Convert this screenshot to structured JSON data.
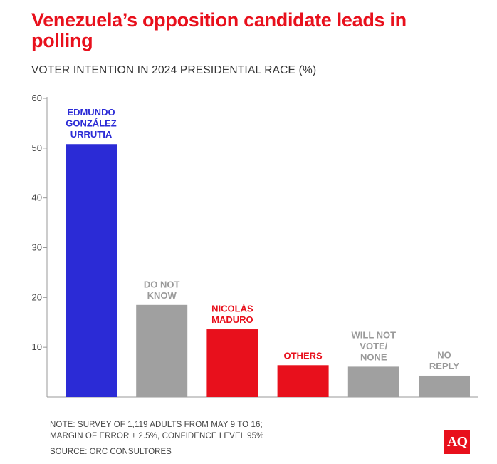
{
  "chart_data": {
    "type": "bar",
    "title": "Venezuela’s opposition candidate leads in polling",
    "subtitle": "VOTER INTENTION IN 2024 PRESIDENTIAL RACE (%)",
    "xlabel": "",
    "ylabel": "",
    "ylim": [
      0,
      60
    ],
    "yticks": [
      10,
      20,
      30,
      40,
      50,
      60
    ],
    "grid": false,
    "categories": [
      [
        "EDMUNDO",
        "GONZÁLEZ",
        "URRUTIA"
      ],
      [
        "DO NOT",
        "KNOW"
      ],
      [
        "NICOLÁS",
        "MADURO"
      ],
      [
        "OTHERS"
      ],
      [
        "WILL NOT",
        "VOTE/",
        "NONE"
      ],
      [
        "NO",
        "REPLY"
      ]
    ],
    "values": [
      50.8,
      18.5,
      13.6,
      6.4,
      6.1,
      4.3
    ],
    "bar_colors": [
      "#2b2bd6",
      "#a0a0a0",
      "#e8101c",
      "#e8101c",
      "#a0a0a0",
      "#a0a0a0"
    ],
    "label_colors": [
      "#2b2bd6",
      "#9a9a9a",
      "#e8101c",
      "#e8101c",
      "#9a9a9a",
      "#9a9a9a"
    ]
  },
  "note": {
    "line1": "NOTE: SURVEY OF 1,119 ADULTS FROM MAY 9 TO 16;",
    "line2": "MARGIN OF ERROR ± 2.5%, CONFIDENCE LEVEL 95%"
  },
  "source": "SOURCE: ORC CONSULTORES",
  "logo_text": "AQ"
}
